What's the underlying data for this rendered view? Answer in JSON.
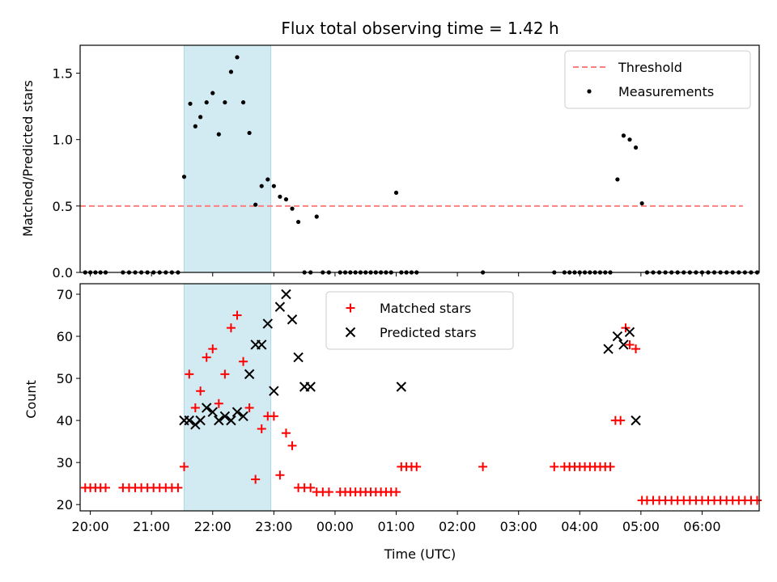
{
  "chart_data": [
    {
      "type": "scatter",
      "title": "Flux total observing time = 1.42 h",
      "xlabel": "",
      "ylabel": "Matched/Predicted stars",
      "xlim": [
        "19:50",
        "06:56"
      ],
      "ylim": [
        0,
        1.71
      ],
      "yticks": [
        0.0,
        0.5,
        1.0,
        1.5
      ],
      "ytick_labels": [
        "0.0",
        "0.5",
        "1.0",
        "1.5"
      ],
      "shaded_region": {
        "x_start": "21:32",
        "x_end": "22:57",
        "color": "#add8e6"
      },
      "legend": {
        "placement": "upper-right",
        "entries": [
          "Threshold",
          "Measurements"
        ]
      },
      "series": [
        {
          "name": "Threshold",
          "kind": "dashed-line",
          "color": "#ff7f7f",
          "x": [
            "19:50",
            "06:40"
          ],
          "y": [
            0.5,
            0.5
          ]
        },
        {
          "name": "Measurements",
          "kind": "points",
          "color": "#000000",
          "x": [
            "19:55",
            "20:00",
            "20:05",
            "20:10",
            "20:15",
            "20:32",
            "20:38",
            "20:44",
            "20:50",
            "20:56",
            "21:02",
            "21:08",
            "21:14",
            "21:20",
            "21:26",
            "21:32",
            "21:38",
            "21:43",
            "21:48",
            "21:54",
            "22:00",
            "22:06",
            "22:12",
            "22:18",
            "22:24",
            "22:30",
            "22:36",
            "22:42",
            "22:48",
            "22:54",
            "23:00",
            "23:06",
            "23:12",
            "23:18",
            "23:24",
            "23:30",
            "23:36",
            "23:42",
            "23:48",
            "23:54",
            "00:05",
            "00:10",
            "00:15",
            "00:20",
            "00:25",
            "00:30",
            "00:35",
            "00:40",
            "00:45",
            "00:50",
            "00:55",
            "01:00",
            "01:05",
            "01:10",
            "01:15",
            "01:20",
            "02:25",
            "03:35",
            "03:45",
            "03:50",
            "03:55",
            "04:00",
            "04:05",
            "04:10",
            "04:15",
            "04:20",
            "04:25",
            "04:30",
            "04:37",
            "04:43",
            "04:49",
            "04:55",
            "05:01",
            "05:06",
            "05:12",
            "05:18",
            "05:24",
            "05:30",
            "05:36",
            "05:42",
            "05:48",
            "05:54",
            "06:00",
            "06:06",
            "06:12",
            "06:18",
            "06:24",
            "06:30",
            "06:36",
            "06:42",
            "06:48",
            "06:54"
          ],
          "y": [
            0,
            0,
            0,
            0,
            0,
            0,
            0,
            0,
            0,
            0,
            0,
            0,
            0,
            0,
            0,
            0.72,
            1.27,
            1.1,
            1.17,
            1.28,
            1.35,
            1.04,
            1.28,
            1.51,
            1.62,
            1.28,
            1.05,
            0.51,
            0.65,
            0.7,
            0.65,
            0.57,
            0.55,
            0.48,
            0.38,
            0,
            0,
            0.42,
            0,
            0,
            0,
            0,
            0,
            0,
            0,
            0,
            0,
            0,
            0,
            0,
            0,
            0.6,
            0,
            0,
            0,
            0,
            0,
            0,
            0,
            0,
            0,
            0,
            0,
            0,
            0,
            0,
            0,
            0,
            0.7,
            1.03,
            1.0,
            0.94,
            0.52,
            0,
            0,
            0,
            0,
            0,
            0,
            0,
            0,
            0,
            0,
            0,
            0,
            0,
            0,
            0,
            0,
            0,
            0,
            0
          ]
        }
      ]
    },
    {
      "type": "scatter",
      "title": "",
      "xlabel": "Time (UTC)",
      "ylabel": "Count",
      "xlim": [
        "19:50",
        "06:56"
      ],
      "ylim": [
        18.5,
        72.5
      ],
      "yticks": [
        20,
        30,
        40,
        50,
        60,
        70
      ],
      "ytick_labels": [
        "20",
        "30",
        "40",
        "50",
        "60",
        "70"
      ],
      "xticks": [
        "20:00",
        "21:00",
        "22:00",
        "23:00",
        "00:00",
        "01:00",
        "02:00",
        "03:00",
        "04:00",
        "05:00",
        "06:00"
      ],
      "xtick_labels": [
        "20:00",
        "21:00",
        "22:00",
        "23:00",
        "00:00",
        "01:00",
        "02:00",
        "03:00",
        "04:00",
        "05:00",
        "06:00"
      ],
      "shaded_region": {
        "x_start": "21:32",
        "x_end": "22:57",
        "color": "#add8e6"
      },
      "legend": {
        "placement": "upper-center",
        "entries": [
          "Matched stars",
          "Predicted stars"
        ]
      },
      "series": [
        {
          "name": "Matched stars",
          "marker": "plus",
          "color": "#ff0000",
          "x": [
            "19:55",
            "20:00",
            "20:05",
            "20:10",
            "20:15",
            "20:32",
            "20:38",
            "20:44",
            "20:50",
            "20:56",
            "21:02",
            "21:08",
            "21:14",
            "21:20",
            "21:26",
            "21:32",
            "21:37",
            "21:43",
            "21:48",
            "21:54",
            "22:00",
            "22:06",
            "22:12",
            "22:18",
            "22:24",
            "22:30",
            "22:36",
            "22:42",
            "22:48",
            "22:54",
            "23:00",
            "23:06",
            "23:12",
            "23:18",
            "23:24",
            "23:30",
            "23:36",
            "23:42",
            "23:48",
            "23:54",
            "00:05",
            "00:10",
            "00:15",
            "00:20",
            "00:25",
            "00:30",
            "00:35",
            "00:40",
            "00:45",
            "00:50",
            "00:55",
            "01:00",
            "01:05",
            "01:10",
            "01:15",
            "01:20",
            "02:25",
            "03:35",
            "03:45",
            "03:50",
            "03:55",
            "04:00",
            "04:05",
            "04:10",
            "04:15",
            "04:20",
            "04:25",
            "04:30",
            "04:35",
            "04:40",
            "04:45",
            "04:49",
            "04:55",
            "05:01",
            "05:06",
            "05:12",
            "05:18",
            "05:24",
            "05:30",
            "05:36",
            "05:42",
            "05:48",
            "05:54",
            "06:00",
            "06:06",
            "06:12",
            "06:18",
            "06:24",
            "06:30",
            "06:36",
            "06:42",
            "06:48",
            "06:54"
          ],
          "y": [
            24,
            24,
            24,
            24,
            24,
            24,
            24,
            24,
            24,
            24,
            24,
            24,
            24,
            24,
            24,
            29,
            51,
            43,
            47,
            55,
            57,
            44,
            51,
            62,
            65,
            54,
            43,
            26,
            38,
            41,
            41,
            27,
            37,
            34,
            24,
            24,
            24,
            23,
            23,
            23,
            23,
            23,
            23,
            23,
            23,
            23,
            23,
            23,
            23,
            23,
            23,
            23,
            29,
            29,
            29,
            29,
            29,
            29,
            29,
            29,
            29,
            29,
            29,
            29,
            29,
            29,
            29,
            29,
            40,
            40,
            62,
            58,
            57,
            21,
            21,
            21,
            21,
            21,
            21,
            21,
            21,
            21,
            21,
            21,
            21,
            21,
            21,
            21,
            21,
            21,
            21,
            21,
            21
          ]
        },
        {
          "name": "Predicted stars",
          "marker": "x",
          "color": "#000000",
          "x": [
            "21:32",
            "21:37",
            "21:43",
            "21:48",
            "21:54",
            "22:00",
            "22:06",
            "22:12",
            "22:18",
            "22:24",
            "22:30",
            "22:36",
            "22:42",
            "22:48",
            "22:54",
            "23:00",
            "23:06",
            "23:12",
            "23:18",
            "23:24",
            "23:30",
            "23:36",
            "01:05",
            "04:28",
            "04:37",
            "04:43",
            "04:49",
            "04:55"
          ],
          "y": [
            40,
            40,
            39,
            40,
            43,
            42,
            40,
            41,
            40,
            42,
            41,
            51,
            58,
            58,
            63,
            47,
            67,
            70,
            64,
            55,
            48,
            48,
            48,
            57,
            60,
            58,
            61,
            40
          ]
        }
      ]
    }
  ]
}
